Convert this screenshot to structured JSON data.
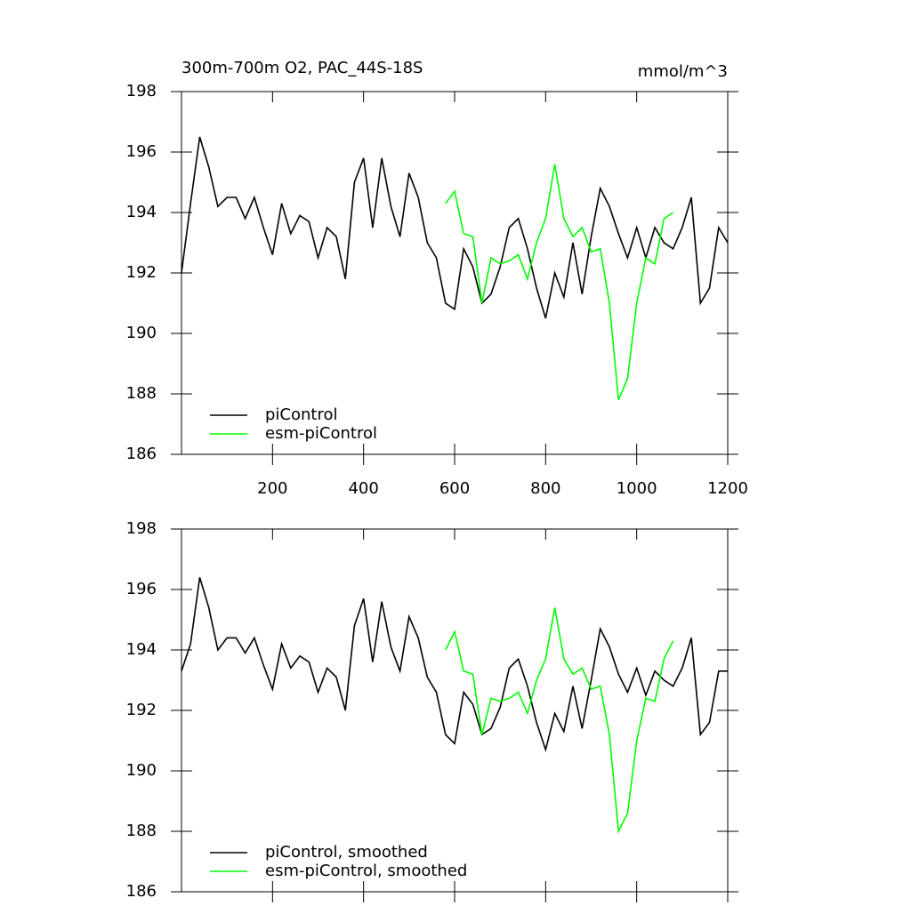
{
  "chart_data": [
    {
      "type": "line",
      "title": "300m-700m O2, PAC_44S-18S",
      "units": "mmol/m^3",
      "xlim": [
        0,
        1200
      ],
      "xticks": [
        200,
        400,
        600,
        800,
        1000,
        1200
      ],
      "ylim": [
        186,
        198
      ],
      "yticks": [
        186,
        188,
        190,
        192,
        194,
        196,
        198
      ],
      "series": [
        {
          "name": "piControl",
          "color": "#000000",
          "x": [
            0,
            20,
            40,
            60,
            80,
            100,
            120,
            140,
            160,
            180,
            200,
            220,
            240,
            260,
            280,
            300,
            320,
            340,
            360,
            380,
            400,
            420,
            440,
            460,
            480,
            500,
            520,
            540,
            560,
            580,
            600,
            620,
            640,
            660,
            680,
            700,
            720,
            740,
            760,
            780,
            800,
            820,
            840,
            860,
            880,
            900,
            920,
            940,
            960,
            980,
            1000,
            1020,
            1040,
            1060,
            1080,
            1100,
            1120,
            1140,
            1160,
            1180,
            1200
          ],
          "values": [
            192,
            194.3,
            196.5,
            195.5,
            194.2,
            194.5,
            194.5,
            193.8,
            194.5,
            193.5,
            192.6,
            194.3,
            193.3,
            193.9,
            193.7,
            192.5,
            193.5,
            193.2,
            191.8,
            195,
            195.8,
            193.5,
            195.8,
            194.2,
            193.2,
            195.3,
            194.5,
            193,
            192.5,
            191,
            190.8,
            192.8,
            192.2,
            191,
            191.3,
            192.2,
            193.5,
            193.8,
            192.8,
            191.5,
            190.5,
            192,
            191.2,
            193,
            191.3,
            193.2,
            194.8,
            194.2,
            193.3,
            192.5,
            193.5,
            192.5,
            193.5,
            193,
            192.8,
            193.5,
            194.5,
            191,
            191.5,
            193.5,
            193
          ]
        },
        {
          "name": "esm-piControl",
          "color": "#00ff00",
          "x": [
            580,
            600,
            620,
            640,
            660,
            680,
            700,
            720,
            740,
            760,
            780,
            800,
            820,
            840,
            860,
            880,
            900,
            920,
            940,
            960,
            980,
            1000,
            1020,
            1040,
            1060,
            1080
          ],
          "values": [
            194.3,
            194.7,
            193.3,
            193.2,
            191,
            192.5,
            192.3,
            192.4,
            192.6,
            191.8,
            193,
            193.8,
            195.6,
            193.8,
            193.2,
            193.5,
            192.7,
            192.8,
            191,
            187.8,
            188.5,
            191,
            192.5,
            192.3,
            193.8,
            194
          ]
        }
      ]
    },
    {
      "type": "line",
      "xlim": [
        0,
        1200
      ],
      "xticks": [
        200,
        400,
        600,
        800,
        1000,
        1200
      ],
      "ylim": [
        186,
        198
      ],
      "yticks": [
        186,
        188,
        190,
        192,
        194,
        196,
        198
      ],
      "series": [
        {
          "name": "piControl, smoothed",
          "color": "#000000",
          "x": [
            0,
            20,
            40,
            60,
            80,
            100,
            120,
            140,
            160,
            180,
            200,
            220,
            240,
            260,
            280,
            300,
            320,
            340,
            360,
            380,
            400,
            420,
            440,
            460,
            480,
            500,
            520,
            540,
            560,
            580,
            600,
            620,
            640,
            660,
            680,
            700,
            720,
            740,
            760,
            780,
            800,
            820,
            840,
            860,
            880,
            900,
            920,
            940,
            960,
            980,
            1000,
            1020,
            1040,
            1060,
            1080,
            1100,
            1120,
            1140,
            1160,
            1180,
            1200
          ],
          "values": [
            193.3,
            194.2,
            196.4,
            195.4,
            194,
            194.4,
            194.4,
            193.9,
            194.4,
            193.5,
            192.7,
            194.2,
            193.4,
            193.8,
            193.6,
            192.6,
            193.4,
            193.1,
            192,
            194.8,
            195.7,
            193.6,
            195.6,
            194.1,
            193.3,
            195.1,
            194.4,
            193.1,
            192.6,
            191.2,
            190.9,
            192.6,
            192.2,
            191.2,
            191.4,
            192.1,
            193.4,
            193.7,
            192.8,
            191.6,
            190.7,
            191.9,
            191.3,
            192.8,
            191.4,
            193,
            194.7,
            194.1,
            193.2,
            192.6,
            193.4,
            192.5,
            193.3,
            193,
            192.8,
            193.4,
            194.4,
            191.2,
            191.6,
            193.3,
            193.3
          ]
        },
        {
          "name": "esm-piControl, smoothed",
          "color": "#00ff00",
          "x": [
            580,
            600,
            620,
            640,
            660,
            680,
            700,
            720,
            740,
            760,
            780,
            800,
            820,
            840,
            860,
            880,
            900,
            920,
            940,
            960,
            980,
            1000,
            1020,
            1040,
            1060,
            1080
          ],
          "values": [
            194,
            194.6,
            193.3,
            193.2,
            191.2,
            192.4,
            192.3,
            192.4,
            192.6,
            191.9,
            193,
            193.7,
            195.4,
            193.7,
            193.2,
            193.4,
            192.7,
            192.8,
            191.2,
            188,
            188.6,
            191,
            192.4,
            192.3,
            193.7,
            194.3
          ]
        }
      ]
    }
  ]
}
